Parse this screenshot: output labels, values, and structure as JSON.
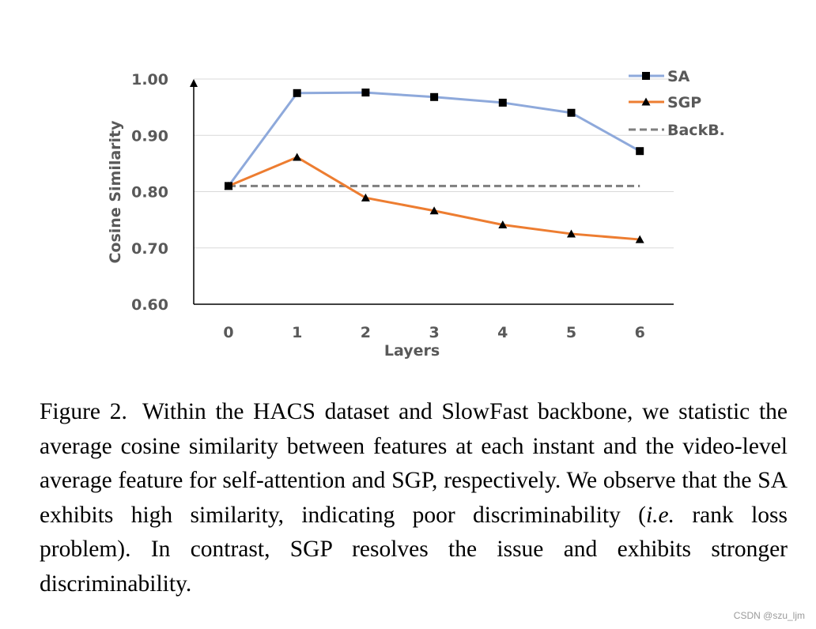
{
  "chart_data": {
    "type": "line",
    "title": "",
    "xlabel": "Layers",
    "ylabel": "Cosine Similarity",
    "x": [
      0,
      1,
      2,
      3,
      4,
      5,
      6
    ],
    "x_tick_labels": [
      "0",
      "1",
      "2",
      "3",
      "4",
      "5",
      "6"
    ],
    "ylim": [
      0.6,
      1.0
    ],
    "y_ticks": [
      0.6,
      0.7,
      0.8,
      0.9,
      1.0
    ],
    "y_tick_labels": [
      "0.60",
      "0.70",
      "0.80",
      "0.90",
      "1.00"
    ],
    "grid": true,
    "legend_position": "top-right",
    "series": [
      {
        "name": "SA",
        "values": [
          0.81,
          0.975,
          0.976,
          0.968,
          0.958,
          0.94,
          0.872
        ],
        "color": "#8EA9DB",
        "marker": "square",
        "dash": "solid"
      },
      {
        "name": "SGP",
        "values": [
          0.81,
          0.861,
          0.789,
          0.766,
          0.741,
          0.725,
          0.715
        ],
        "color": "#ED7D31",
        "marker": "triangle",
        "dash": "solid"
      },
      {
        "name": "BackB.",
        "values": [
          0.81,
          0.81,
          0.81,
          0.81,
          0.81,
          0.81,
          0.81
        ],
        "color": "#7F7F7F",
        "marker": "none",
        "dash": "dashed"
      }
    ]
  },
  "caption": {
    "figure_label": "Figure 2.",
    "text_before_italic": "Within the HACS dataset and SlowFast backbone, we statistic the average cosine similarity between features at each instant and the video-level average feature for self-attention and SGP, respectively. We observe that the SA exhibits high similarity, indicating poor discriminability (",
    "italic": "i.e.",
    "text_after_italic": " rank loss problem). In contrast, SGP resolves the issue and exhibits stronger discriminability."
  },
  "watermark": "CSDN @szu_ljm"
}
